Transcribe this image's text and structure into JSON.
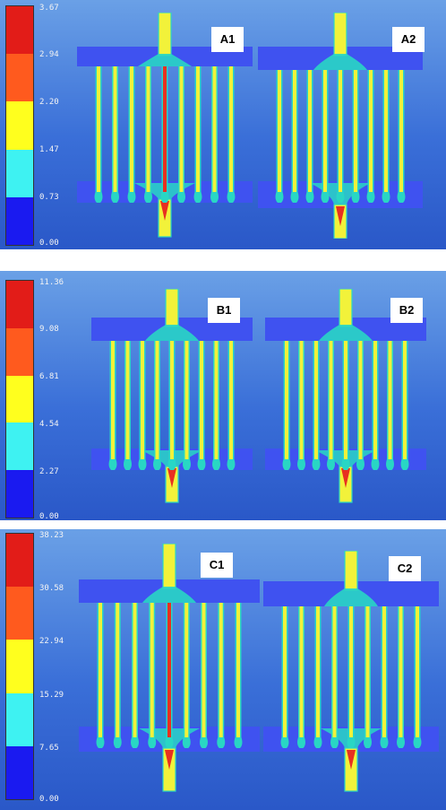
{
  "colors": {
    "background": "#3a6fd8",
    "manifold": "#3f52f0",
    "channel": "#f2f23a",
    "channel_edge": "#29d6c4",
    "hot": "#e83020",
    "legend": [
      "#e21c18",
      "#ff5a1e",
      "#ffff1e",
      "#3ef2f2",
      "#1a1af0"
    ]
  },
  "rows": [
    {
      "legend_ticks": [
        "3.67",
        "2.94",
        "2.20",
        "1.47",
        "0.73",
        "0.00"
      ],
      "panels": [
        {
          "label": "A1",
          "hot_center": true
        },
        {
          "label": "A2",
          "hot_center": false
        }
      ]
    },
    {
      "legend_ticks": [
        "11.36",
        "9.08",
        "6.81",
        "4.54",
        "2.27",
        "0.00"
      ],
      "panels": [
        {
          "label": "B1",
          "hot_center": false
        },
        {
          "label": "B2",
          "hot_center": false
        }
      ]
    },
    {
      "legend_ticks": [
        "38.23",
        "30.58",
        "22.94",
        "15.29",
        "7.65",
        "0.00"
      ],
      "panels": [
        {
          "label": "C1",
          "hot_center": true
        },
        {
          "label": "C2",
          "hot_center": false
        }
      ]
    }
  ]
}
